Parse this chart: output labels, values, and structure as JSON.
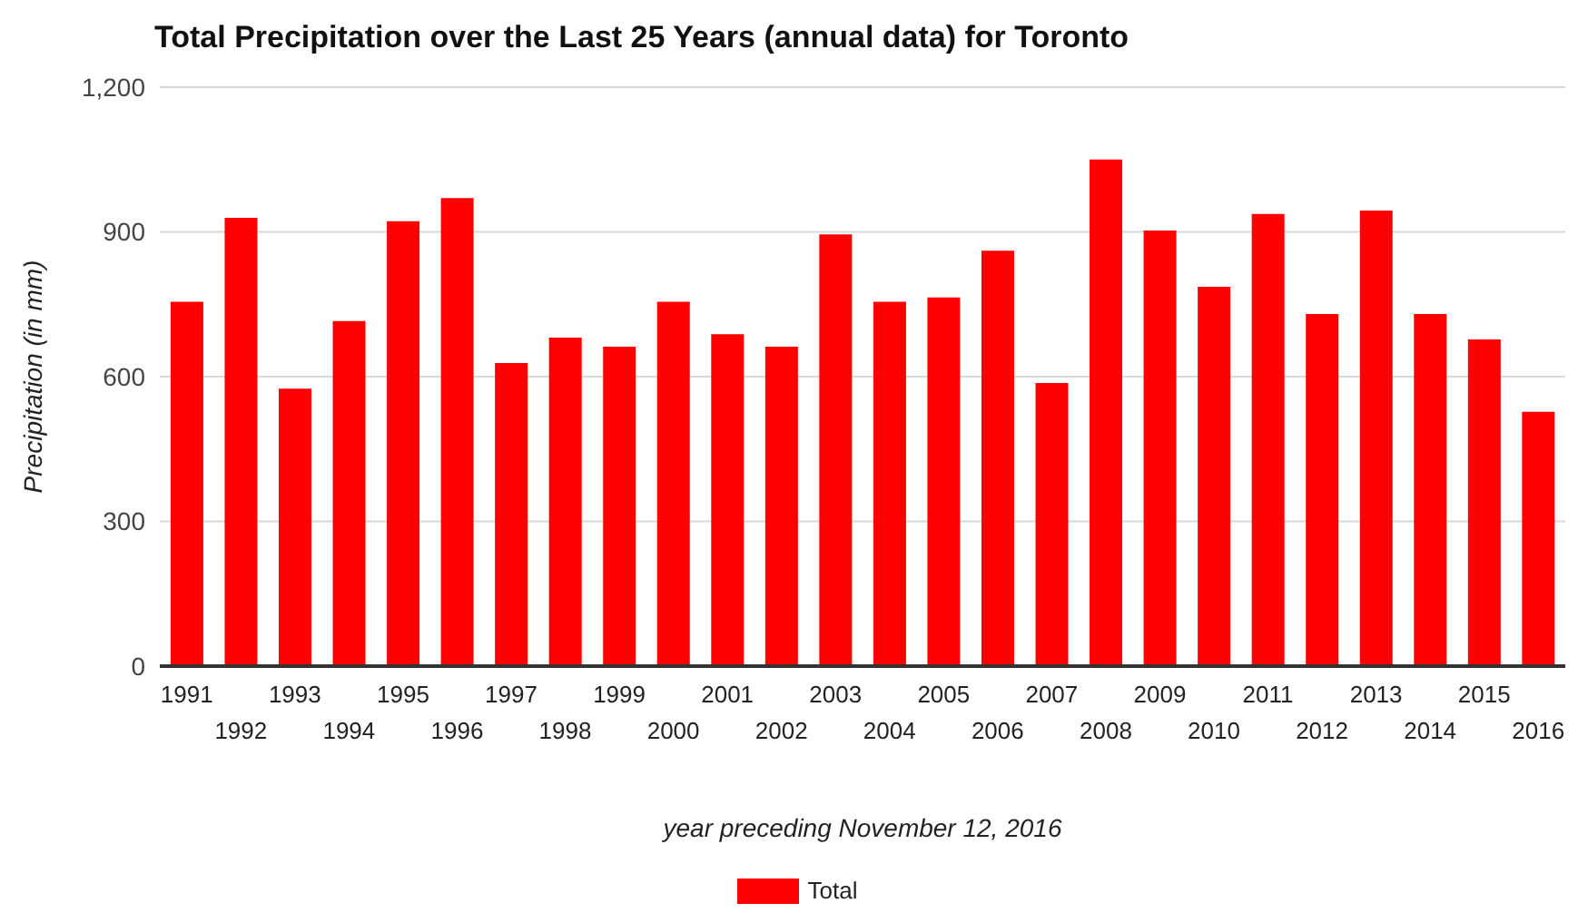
{
  "chart_data": {
    "type": "bar",
    "title": "Total Precipitation over the Last 25 Years (annual data) for Toronto",
    "xlabel": "year preceding November 12, 2016",
    "ylabel": "Precipitation (in mm)",
    "categories": [
      "1991",
      "1992",
      "1993",
      "1994",
      "1995",
      "1996",
      "1997",
      "1998",
      "1999",
      "2000",
      "2001",
      "2002",
      "2003",
      "2004",
      "2005",
      "2006",
      "2007",
      "2008",
      "2009",
      "2010",
      "2011",
      "2012",
      "2013",
      "2014",
      "2015",
      "2016"
    ],
    "series": [
      {
        "name": "Total",
        "color": "#ff0000",
        "values": [
          755,
          929,
          575,
          715,
          922,
          970,
          628,
          681,
          662,
          755,
          688,
          662,
          895,
          755,
          764,
          861,
          587,
          1050,
          903,
          786,
          937,
          730,
          944,
          730,
          677,
          527
        ]
      }
    ],
    "ylim": [
      0,
      1200
    ],
    "yticks": [
      0,
      300,
      600,
      900,
      {
        "value": 1200,
        "label": "1,200"
      }
    ],
    "grid": "y",
    "legend": "bottom"
  }
}
